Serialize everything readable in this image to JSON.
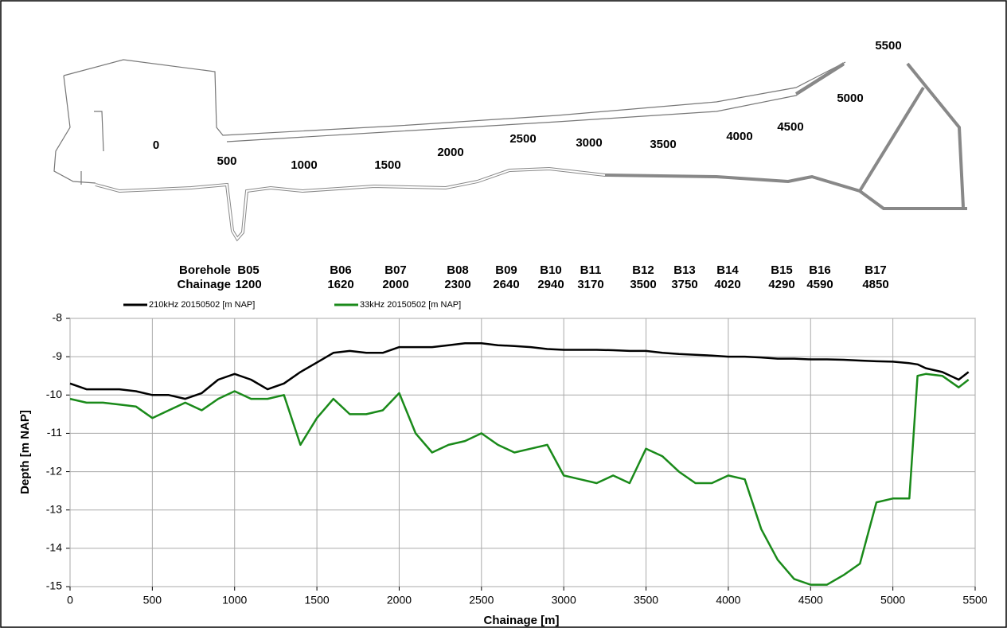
{
  "map": {
    "chainage_labels": [
      "0",
      "500",
      "1000",
      "1500",
      "2000",
      "2500",
      "3000",
      "3500",
      "4000",
      "4500",
      "5000",
      "5500"
    ]
  },
  "boreholes": {
    "header": [
      "Borehole",
      "Chainage"
    ],
    "names": [
      "B05",
      "B06",
      "B07",
      "B08",
      "B09",
      "B10",
      "B11",
      "B12",
      "B13",
      "B14",
      "B15",
      "B16",
      "B17"
    ],
    "chainages": [
      1200,
      1620,
      2000,
      2300,
      2640,
      2940,
      3170,
      3500,
      3750,
      4020,
      4290,
      4590,
      4850
    ]
  },
  "chart_data": {
    "type": "line",
    "x_label": "Chainage [m]",
    "y_label": "Depth [m NAP]",
    "x": [
      0,
      100,
      200,
      300,
      400,
      500,
      600,
      700,
      800,
      900,
      1000,
      1100,
      1200,
      1300,
      1400,
      1500,
      1600,
      1700,
      1800,
      1900,
      2000,
      2100,
      2200,
      2300,
      2400,
      2500,
      2600,
      2700,
      2800,
      2900,
      3000,
      3100,
      3200,
      3300,
      3400,
      3500,
      3600,
      3700,
      3800,
      3900,
      4000,
      4100,
      4200,
      4300,
      4400,
      4500,
      4600,
      4700,
      4800,
      4900,
      5000,
      5100,
      5150,
      5200,
      5300,
      5400,
      5460
    ],
    "series": [
      {
        "name": "210kHz 20150502 [m NAP]",
        "color": "#000000",
        "values": [
          -9.7,
          -9.85,
          -9.85,
          -9.85,
          -9.9,
          -10.0,
          -10.0,
          -10.1,
          -9.95,
          -9.6,
          -9.45,
          -9.6,
          -9.85,
          -9.7,
          -9.4,
          -9.15,
          -8.9,
          -8.85,
          -8.9,
          -8.9,
          -8.75,
          -8.75,
          -8.75,
          -8.7,
          -8.65,
          -8.65,
          -8.7,
          -8.72,
          -8.75,
          -8.8,
          -8.82,
          -8.82,
          -8.82,
          -8.83,
          -8.85,
          -8.85,
          -8.9,
          -8.93,
          -8.95,
          -8.97,
          -9.0,
          -9.0,
          -9.02,
          -9.05,
          -9.05,
          -9.07,
          -9.07,
          -9.08,
          -9.1,
          -9.12,
          -9.13,
          -9.17,
          -9.2,
          -9.3,
          -9.4,
          -9.6,
          -9.4
        ]
      },
      {
        "name": "33kHz 20150502 [m NAP]",
        "color": "#1a8a1a",
        "values": [
          -10.1,
          -10.2,
          -10.2,
          -10.25,
          -10.3,
          -10.6,
          -10.4,
          -10.2,
          -10.4,
          -10.1,
          -9.9,
          -10.1,
          -10.1,
          -10.0,
          -11.3,
          -10.6,
          -10.1,
          -10.5,
          -10.5,
          -10.4,
          -9.95,
          -11.0,
          -11.5,
          -11.3,
          -11.2,
          -11.0,
          -11.3,
          -11.5,
          -11.4,
          -11.3,
          -12.1,
          -12.2,
          -12.3,
          -12.1,
          -12.3,
          -11.4,
          -11.6,
          -12.0,
          -12.3,
          -12.3,
          -12.1,
          -12.2,
          -13.5,
          -14.3,
          -14.8,
          -14.95,
          -14.95,
          -14.7,
          -14.4,
          -12.8,
          -12.7,
          -12.7,
          -9.5,
          -9.45,
          -9.5,
          -9.8,
          -9.6
        ]
      }
    ],
    "xlim": [
      0,
      5500
    ],
    "ylim": [
      -15,
      -8
    ],
    "xticks": [
      0,
      500,
      1000,
      1500,
      2000,
      2500,
      3000,
      3500,
      4000,
      4500,
      5000,
      5500
    ],
    "yticks": [
      -8,
      -9,
      -10,
      -11,
      -12,
      -13,
      -14,
      -15
    ],
    "grid": true,
    "legend": "top-left"
  }
}
